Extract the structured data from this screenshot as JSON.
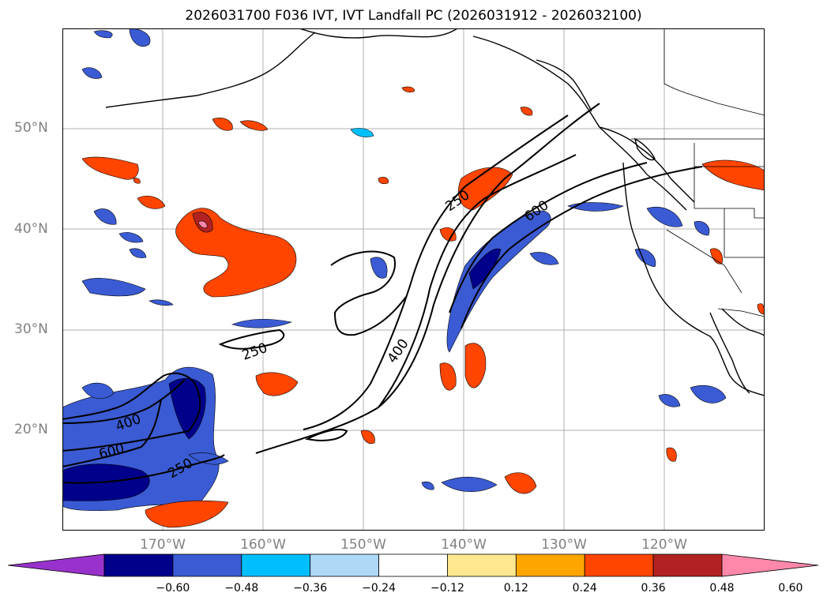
{
  "title": "2026031700 F036 IVT, IVT Landfall PC (2026031912 - 2026032100)",
  "map": {
    "lat_labels": [
      "50°N",
      "40°N",
      "30°N",
      "20°N"
    ],
    "lon_labels": [
      "170°W",
      "160°W",
      "150°W",
      "140°W",
      "130°W",
      "120°W"
    ],
    "contour_labels": [
      "250",
      "600",
      "400",
      "250",
      "400",
      "600",
      "250"
    ]
  },
  "colorbar": {
    "tick_labels": [
      "−0.60",
      "−0.48",
      "−0.36",
      "−0.24",
      "−0.12",
      "0.12",
      "0.24",
      "0.36",
      "0.48",
      "0.60"
    ],
    "colors": [
      "#9932cc",
      "#00008b",
      "#3a5bd3",
      "#00bfff",
      "#add8f6",
      "#ffffff",
      "#ffe88f",
      "#ffa500",
      "#ff4500",
      "#b22222",
      "#ff88aa"
    ]
  }
}
